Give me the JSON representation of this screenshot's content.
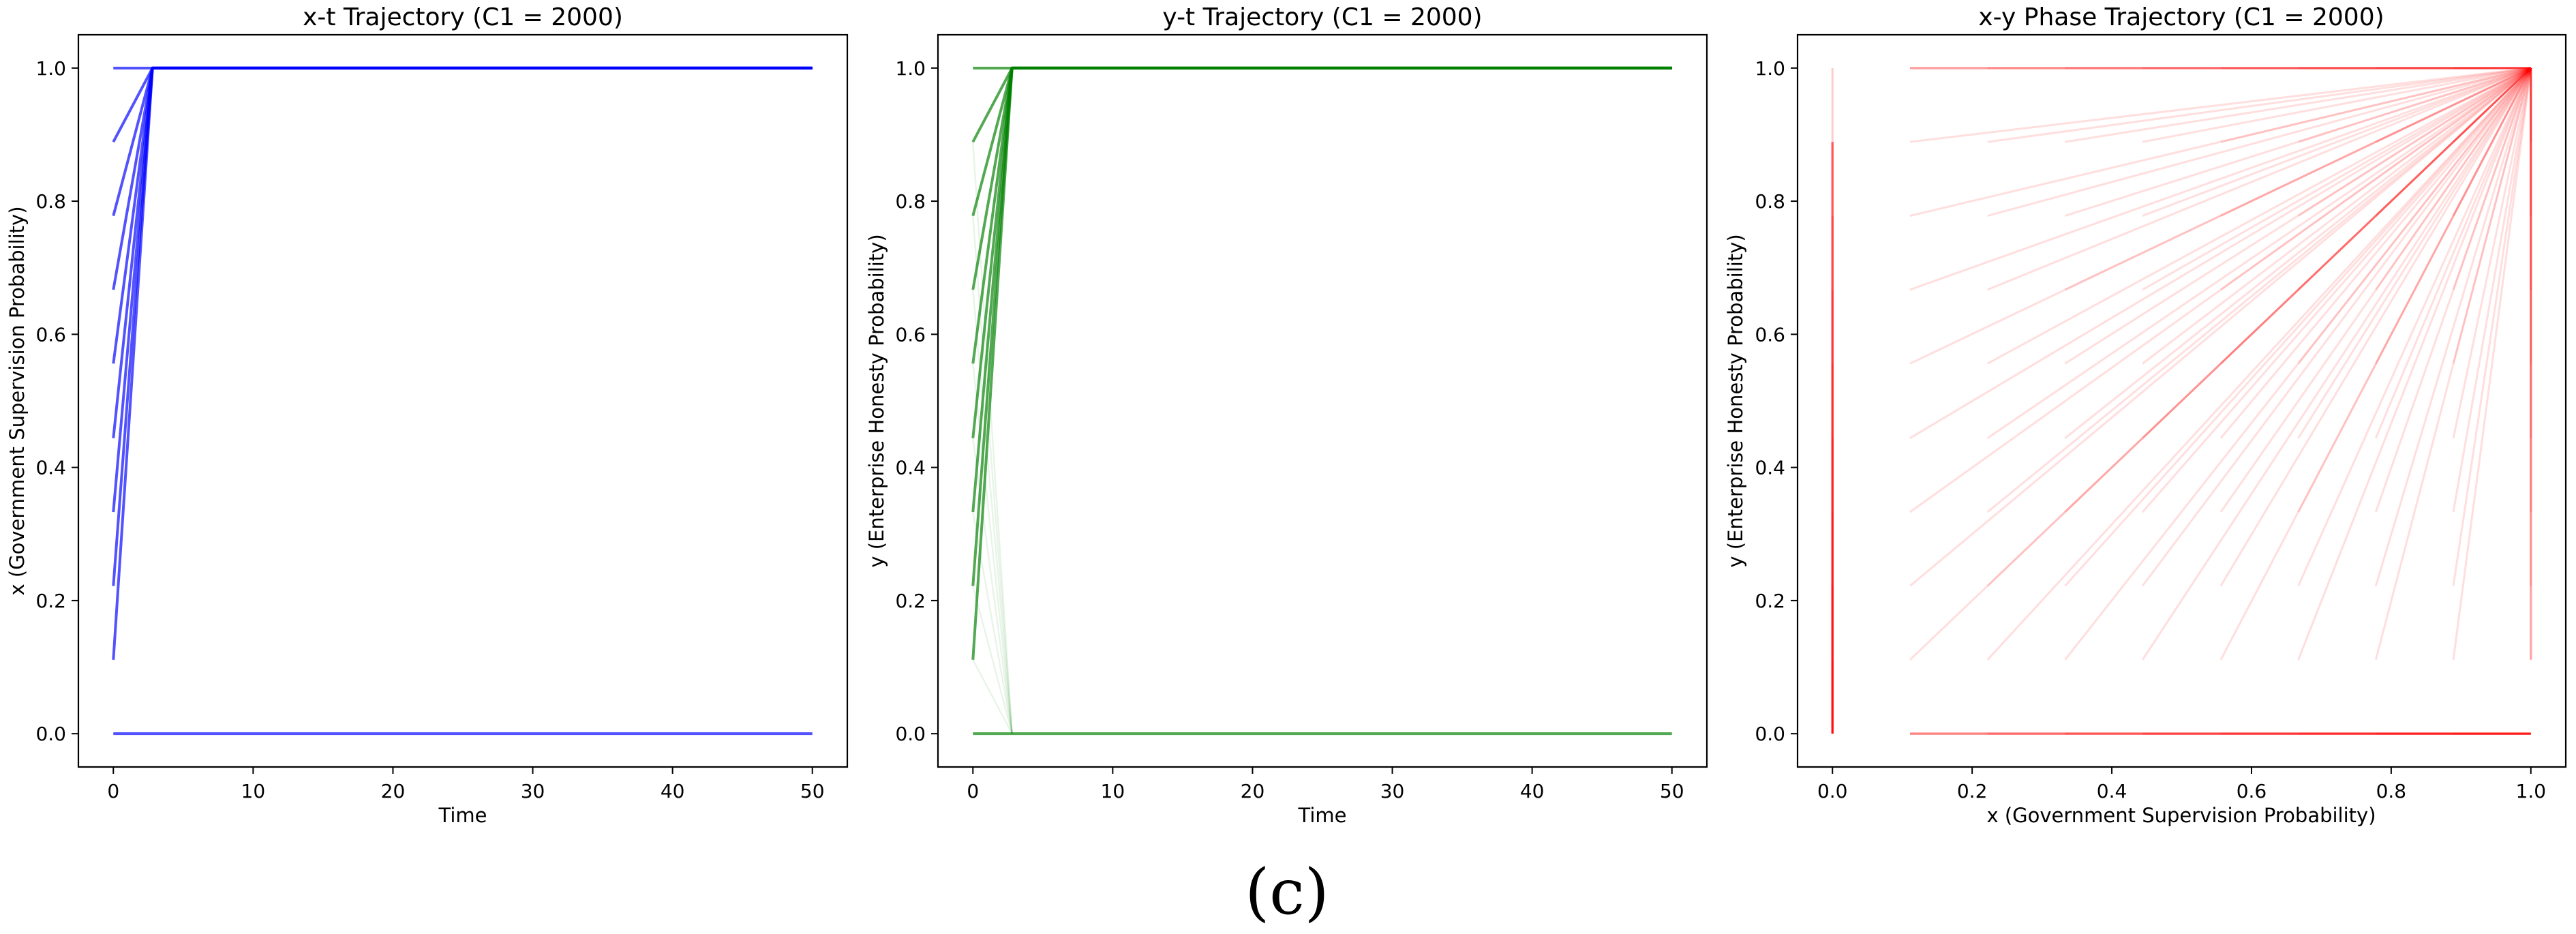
{
  "figure_caption": "(c)",
  "chart_data": [
    {
      "type": "line",
      "title": "x-t Trajectory (C1 = 2000)",
      "xlabel": "Time",
      "ylabel": "x (Government Supervision Probability)",
      "xlim": [
        -2.5,
        52.5
      ],
      "ylim": [
        -0.05,
        1.05
      ],
      "xticks": [
        0,
        10,
        20,
        30,
        40,
        50
      ],
      "xtick_labels": [
        "0",
        "10",
        "20",
        "30",
        "40",
        "50"
      ],
      "yticks": [
        0.0,
        0.2,
        0.4,
        0.6,
        0.8,
        1.0
      ],
      "ytick_labels": [
        "0.0",
        "0.2",
        "0.4",
        "0.6",
        "0.8",
        "1.0"
      ],
      "color": "#0000ff",
      "convergence_time": 2.8,
      "final_value": 1.0,
      "series": [
        {
          "name": "x0 = 0.0",
          "x": [
            0,
            50
          ],
          "y": [
            0.0,
            0.0
          ]
        },
        {
          "name": "x0 = 0.111",
          "x": [
            0,
            2.8,
            50
          ],
          "y": [
            0.111,
            1.0,
            1.0
          ]
        },
        {
          "name": "x0 = 0.222",
          "x": [
            0,
            2.8,
            50
          ],
          "y": [
            0.222,
            1.0,
            1.0
          ]
        },
        {
          "name": "x0 = 0.333",
          "x": [
            0,
            2.8,
            50
          ],
          "y": [
            0.333,
            1.0,
            1.0
          ]
        },
        {
          "name": "x0 = 0.444",
          "x": [
            0,
            2.8,
            50
          ],
          "y": [
            0.444,
            1.0,
            1.0
          ]
        },
        {
          "name": "x0 = 0.556",
          "x": [
            0,
            2.8,
            50
          ],
          "y": [
            0.556,
            1.0,
            1.0
          ]
        },
        {
          "name": "x0 = 0.667",
          "x": [
            0,
            2.8,
            50
          ],
          "y": [
            0.667,
            1.0,
            1.0
          ]
        },
        {
          "name": "x0 = 0.778",
          "x": [
            0,
            2.8,
            50
          ],
          "y": [
            0.778,
            1.0,
            1.0
          ]
        },
        {
          "name": "x0 = 0.889",
          "x": [
            0,
            2.8,
            50
          ],
          "y": [
            0.889,
            1.0,
            1.0
          ]
        },
        {
          "name": "x0 = 1.0",
          "x": [
            0,
            50
          ],
          "y": [
            1.0,
            1.0
          ]
        }
      ]
    },
    {
      "type": "line",
      "title": "y-t Trajectory (C1 = 2000)",
      "xlabel": "Time",
      "ylabel": "y (Enterprise Honesty Probability)",
      "xlim": [
        -2.5,
        52.5
      ],
      "ylim": [
        -0.05,
        1.05
      ],
      "xticks": [
        0,
        10,
        20,
        30,
        40,
        50
      ],
      "xtick_labels": [
        "0",
        "10",
        "20",
        "30",
        "40",
        "50"
      ],
      "yticks": [
        0.0,
        0.2,
        0.4,
        0.6,
        0.8,
        1.0
      ],
      "ytick_labels": [
        "0.0",
        "0.2",
        "0.4",
        "0.6",
        "0.8",
        "1.0"
      ],
      "color": "#008000",
      "convergence_time": 2.8,
      "series": [
        {
          "name": "y0 = 0.0",
          "x": [
            0,
            50
          ],
          "y": [
            0.0,
            0.0
          ]
        },
        {
          "name": "y0 = 0.111",
          "x": [
            0,
            2.8,
            50
          ],
          "y": [
            0.111,
            1.0,
            1.0
          ]
        },
        {
          "name": "y0 = 0.222",
          "x": [
            0,
            2.8,
            50
          ],
          "y": [
            0.222,
            1.0,
            1.0
          ]
        },
        {
          "name": "y0 = 0.333",
          "x": [
            0,
            2.8,
            50
          ],
          "y": [
            0.333,
            1.0,
            1.0
          ]
        },
        {
          "name": "y0 = 0.444",
          "x": [
            0,
            2.8,
            50
          ],
          "y": [
            0.444,
            1.0,
            1.0
          ]
        },
        {
          "name": "y0 = 0.556",
          "x": [
            0,
            2.8,
            50
          ],
          "y": [
            0.556,
            1.0,
            1.0
          ]
        },
        {
          "name": "y0 = 0.667",
          "x": [
            0,
            2.8,
            50
          ],
          "y": [
            0.667,
            1.0,
            1.0
          ]
        },
        {
          "name": "y0 = 0.778",
          "x": [
            0,
            2.8,
            50
          ],
          "y": [
            0.778,
            1.0,
            1.0
          ]
        },
        {
          "name": "y0 = 0.889",
          "x": [
            0,
            2.8,
            50
          ],
          "y": [
            0.889,
            1.0,
            1.0
          ]
        },
        {
          "name": "y0 = 1.0",
          "x": [
            0,
            50
          ],
          "y": [
            1.0,
            1.0
          ]
        }
      ],
      "faint_decay_starts": [
        0.111,
        0.222,
        0.333,
        0.444,
        0.556,
        0.667,
        0.778,
        0.889
      ]
    },
    {
      "type": "line",
      "title": "x-y Phase Trajectory (C1 = 2000)",
      "xlabel": "x (Government Supervision Probability)",
      "ylabel": "y (Enterprise Honesty Probability)",
      "xlim": [
        -0.05,
        1.05
      ],
      "ylim": [
        -0.05,
        1.05
      ],
      "xticks": [
        0.0,
        0.2,
        0.4,
        0.6,
        0.8,
        1.0
      ],
      "xtick_labels": [
        "0.0",
        "0.2",
        "0.4",
        "0.6",
        "0.8",
        "1.0"
      ],
      "yticks": [
        0.0,
        0.2,
        0.4,
        0.6,
        0.8,
        1.0
      ],
      "ytick_labels": [
        "0.0",
        "0.2",
        "0.4",
        "0.6",
        "0.8",
        "1.0"
      ],
      "color": "#ff0000",
      "initial_grid": [
        0.0,
        0.111,
        0.222,
        0.333,
        0.444,
        0.556,
        0.667,
        0.778,
        0.889,
        1.0
      ],
      "equilibria": [
        [
          1.0,
          1.0
        ],
        [
          0.0,
          0.0
        ],
        [
          1.0,
          0.0
        ],
        [
          0.0,
          1.0
        ]
      ]
    }
  ]
}
